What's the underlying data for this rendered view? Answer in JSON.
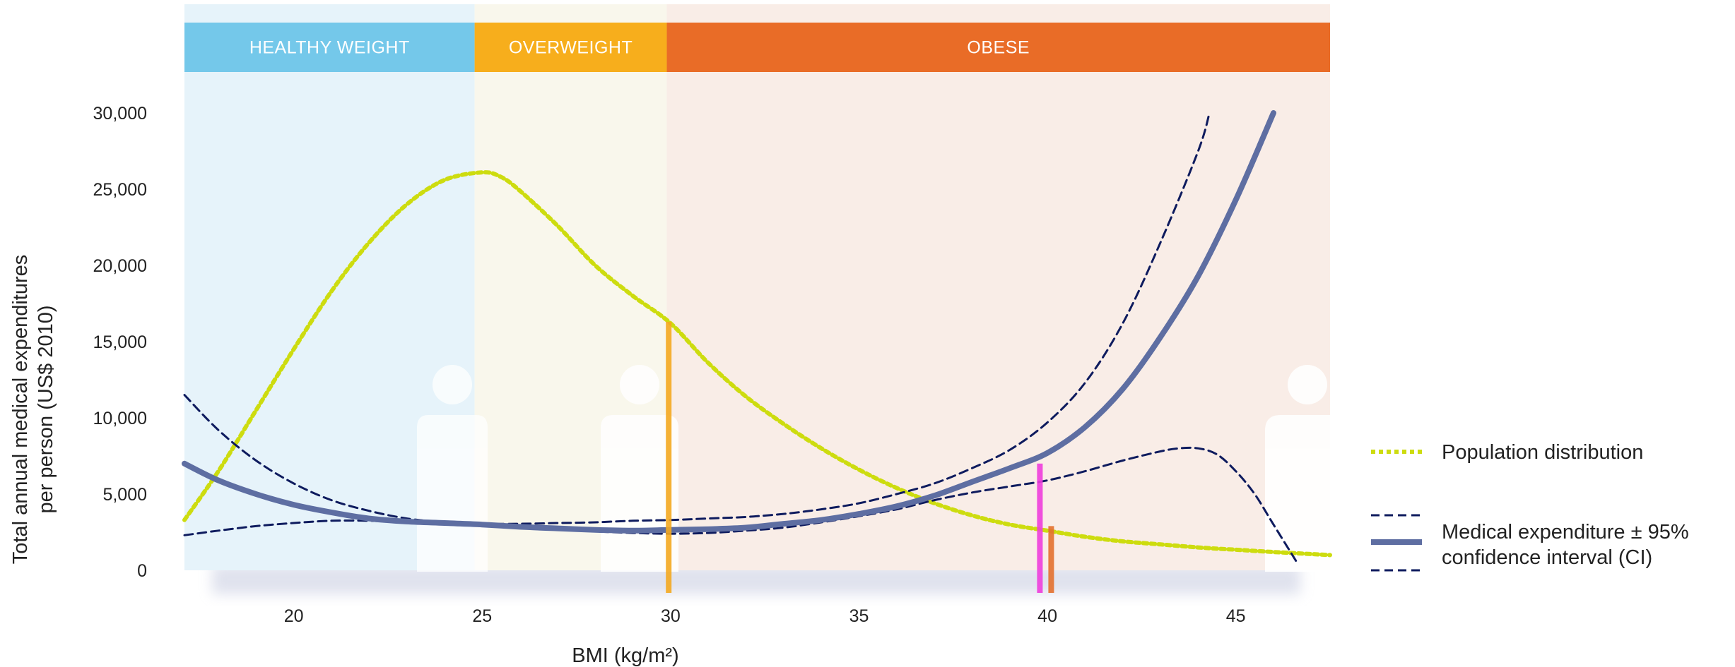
{
  "chart_data": {
    "type": "line",
    "xlabel": "BMI (kg/m²)",
    "ylabel": [
      "Total annual medical expenditures",
      "per person (US$ 2010)"
    ],
    "xlim": [
      17.1,
      47.5
    ],
    "ylim": [
      0,
      30000
    ],
    "x_ticks": [
      20,
      25,
      30,
      35,
      40,
      45
    ],
    "y_ticks": [
      0,
      5000,
      10000,
      15000,
      20000,
      25000,
      30000
    ],
    "x_tick_labels": [
      "20",
      "25",
      "30",
      "35",
      "40",
      "45"
    ],
    "y_tick_labels": [
      "0",
      "5,000",
      "10,000",
      "15,000",
      "20,000",
      "25,000",
      "30,000"
    ],
    "grid": false,
    "legend_position": "right",
    "categories_bands": [
      {
        "label": "HEALTHY WEIGHT",
        "x0": 17.1,
        "x1": 24.8,
        "color": "#74c8ea",
        "bg": "#e6f3fa"
      },
      {
        "label": "OVERWEIGHT",
        "x0": 24.8,
        "x1": 29.9,
        "color": "#f7ae1c",
        "bg": "#f9f7ec"
      },
      {
        "label": "OBESE",
        "x0": 29.9,
        "x1": 47.5,
        "color": "#e96c27",
        "bg": "#f9ede7"
      }
    ],
    "vertical_markers": [
      {
        "x": 29.95,
        "y_top": 16300,
        "color": "#f4a820"
      },
      {
        "x": 39.8,
        "y_top": 7000,
        "color": "#ee3ddc"
      },
      {
        "x": 40.1,
        "y_top": 2900,
        "color": "#e3702e"
      }
    ],
    "series": [
      {
        "name": "Population distribution",
        "style": "dotted",
        "color": "#cddc0f",
        "x": [
          17.1,
          18.0,
          19.0,
          20.0,
          21.0,
          22.0,
          23.0,
          24.0,
          25.0,
          25.5,
          26.0,
          27.0,
          28.0,
          29.0,
          30.0,
          31.0,
          32.0,
          33.0,
          34.0,
          35.0,
          36.0,
          37.0,
          38.0,
          39.0,
          40.0,
          41.0,
          42.0,
          43.0,
          44.0,
          45.0,
          46.0,
          47.5
        ],
        "y": [
          3300,
          6500,
          10500,
          14500,
          18300,
          21500,
          24000,
          25600,
          26100,
          25800,
          24900,
          22600,
          20000,
          18000,
          16200,
          13600,
          11400,
          9600,
          8000,
          6600,
          5400,
          4400,
          3600,
          3000,
          2600,
          2200,
          1900,
          1700,
          1500,
          1350,
          1200,
          1000
        ]
      },
      {
        "name": "Medical expenditure ± 95% confidence interval (CI)",
        "style": "solid",
        "color": "#5e6ea2",
        "x": [
          17.1,
          18.0,
          19.0,
          20.0,
          21.0,
          22.0,
          23.0,
          24.0,
          25.0,
          26.0,
          27.0,
          28.0,
          29.0,
          30.0,
          31.0,
          32.0,
          33.0,
          34.0,
          35.0,
          36.0,
          37.0,
          38.0,
          39.0,
          40.0,
          41.0,
          42.0,
          43.0,
          44.0,
          45.0,
          46.0
        ],
        "y": [
          7000,
          5900,
          5000,
          4300,
          3800,
          3400,
          3200,
          3100,
          3000,
          2850,
          2750,
          2650,
          2600,
          2650,
          2700,
          2800,
          3050,
          3300,
          3700,
          4200,
          4900,
          5800,
          6700,
          7700,
          9400,
          11900,
          15300,
          19300,
          24300,
          30000
        ]
      },
      {
        "name": "95% CI upper",
        "style": "dashed",
        "color": "#0e1b5e",
        "x": [
          17.1,
          18.0,
          19.0,
          20.0,
          21.0,
          22.0,
          23.0,
          24.0,
          25.0,
          26.0,
          27.0,
          28.0,
          29.0,
          30.0,
          31.0,
          32.0,
          33.0,
          34.0,
          35.0,
          36.0,
          37.0,
          38.0,
          39.0,
          40.0,
          41.0,
          42.0,
          43.0,
          44.0,
          44.3
        ],
        "y": [
          11500,
          9200,
          7200,
          5700,
          4600,
          3900,
          3400,
          3150,
          3050,
          3050,
          3100,
          3150,
          3250,
          3300,
          3400,
          3500,
          3700,
          4000,
          4400,
          5000,
          5700,
          6700,
          7900,
          9700,
          12300,
          16200,
          21500,
          27500,
          30000
        ]
      },
      {
        "name": "95% CI lower",
        "style": "dashed",
        "color": "#0e1b5e",
        "x": [
          17.1,
          18.0,
          19.0,
          20.0,
          21.0,
          22.0,
          23.0,
          24.0,
          25.0,
          26.0,
          27.0,
          28.0,
          29.0,
          30.0,
          31.0,
          32.0,
          33.0,
          34.0,
          35.0,
          36.0,
          37.0,
          38.0,
          39.0,
          40.0,
          41.0,
          42.0,
          43.0,
          43.5,
          44.0,
          44.5,
          45.0,
          45.5,
          46.0,
          46.6
        ],
        "y": [
          2300,
          2600,
          2900,
          3100,
          3250,
          3250,
          3150,
          3050,
          3000,
          2850,
          2700,
          2550,
          2450,
          2400,
          2450,
          2600,
          2800,
          3150,
          3550,
          4000,
          4600,
          5100,
          5500,
          5900,
          6500,
          7200,
          7800,
          8000,
          8000,
          7600,
          6500,
          5000,
          3000,
          600
        ]
      }
    ],
    "legend": {
      "population_label": "Population distribution",
      "expenditure_label_line1": "Medical expenditure ± 95%",
      "expenditure_label_line2": "confidence interval (CI)"
    }
  }
}
